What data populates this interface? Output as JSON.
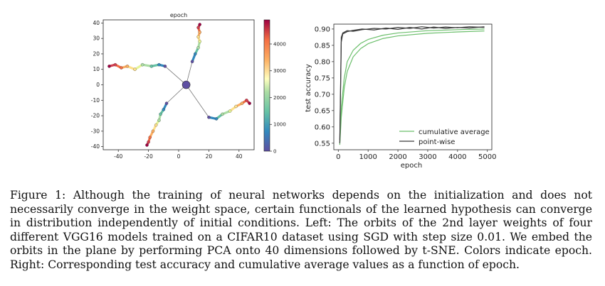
{
  "chart_data": [
    {
      "type": "scatter",
      "title": "epoch",
      "xlabel": "",
      "ylabel": "",
      "xlim": [
        -50,
        50
      ],
      "ylim": [
        -42,
        42
      ],
      "xticks": [
        -40,
        -20,
        0,
        20,
        40
      ],
      "yticks": [
        -40,
        -30,
        -20,
        -10,
        0,
        10,
        20,
        30,
        40
      ],
      "center": [
        5,
        0
      ],
      "colorbar": {
        "range": [
          0,
          4900
        ],
        "ticks": [
          0,
          1000,
          2000,
          3000,
          4000
        ]
      },
      "grid": false,
      "series": [
        {
          "points": [
            [
              -9,
              12
            ],
            [
              -13,
              13
            ],
            [
              -18,
              12
            ],
            [
              -24,
              13
            ],
            [
              -29,
              10
            ],
            [
              -34,
              12
            ],
            [
              -38,
              11
            ],
            [
              -42,
              13
            ],
            [
              -46,
              12
            ]
          ]
        },
        {
          "points": [
            [
              9,
              15
            ],
            [
              11,
              20
            ],
            [
              13,
              24
            ],
            [
              14,
              28
            ],
            [
              13,
              31
            ],
            [
              14,
              34
            ],
            [
              13,
              37
            ],
            [
              14,
              39
            ]
          ]
        },
        {
          "points": [
            [
              -8,
              -12
            ],
            [
              -10,
              -16
            ],
            [
              -12,
              -19
            ],
            [
              -13,
              -23
            ],
            [
              -15,
              -26
            ],
            [
              -17,
              -30
            ],
            [
              -19,
              -34
            ],
            [
              -20,
              -37
            ],
            [
              -21,
              -39
            ]
          ]
        },
        {
          "points": [
            [
              20,
              -21
            ],
            [
              25,
              -22
            ],
            [
              29,
              -19
            ],
            [
              34,
              -17
            ],
            [
              38,
              -14
            ],
            [
              42,
              -12
            ],
            [
              45,
              -10
            ],
            [
              47,
              -12
            ]
          ]
        }
      ]
    },
    {
      "type": "line",
      "title": "",
      "xlabel": "epoch",
      "ylabel": "test accuracy",
      "xlim": [
        -150,
        5150
      ],
      "ylim": [
        0.53,
        0.915
      ],
      "xticks": [
        0,
        1000,
        2000,
        3000,
        4000,
        5000
      ],
      "yticks": [
        0.55,
        0.6,
        0.65,
        0.7,
        0.75,
        0.8,
        0.85,
        0.9
      ],
      "legend": "lower-right",
      "series": [
        {
          "name": "cumulative average",
          "color": "#6cbf6c",
          "x": [
            50,
            100,
            200,
            300,
            500,
            750,
            1000,
            1500,
            2000,
            3000,
            4000,
            4900
          ],
          "y": [
            0.545,
            0.63,
            0.72,
            0.77,
            0.815,
            0.84,
            0.855,
            0.871,
            0.879,
            0.887,
            0.891,
            0.894
          ]
        },
        {
          "name": "",
          "color": "#6cbf6c",
          "x": [
            50,
            100,
            200,
            300,
            500,
            750,
            1000,
            1500,
            2000,
            3000,
            4000,
            4900
          ],
          "y": [
            0.55,
            0.66,
            0.75,
            0.8,
            0.835,
            0.856,
            0.868,
            0.881,
            0.888,
            0.895,
            0.898,
            0.9
          ]
        },
        {
          "name": "point-wise",
          "color": "#3a3a3a",
          "x": [
            50,
            100,
            150,
            300,
            500,
            800,
            1200,
            1600,
            2000,
            2400,
            2800,
            3200,
            3600,
            4000,
            4400,
            4900
          ],
          "y": [
            0.55,
            0.86,
            0.885,
            0.892,
            0.896,
            0.9,
            0.897,
            0.903,
            0.899,
            0.905,
            0.9,
            0.906,
            0.902,
            0.905,
            0.903,
            0.907
          ]
        },
        {
          "name": "",
          "color": "#3a3a3a",
          "x": [
            50,
            100,
            150,
            300,
            500,
            800,
            1200,
            1600,
            2000,
            2400,
            2800,
            3200,
            3600,
            4000,
            4400,
            4900
          ],
          "y": [
            0.56,
            0.875,
            0.888,
            0.895,
            0.893,
            0.898,
            0.902,
            0.9,
            0.905,
            0.902,
            0.907,
            0.903,
            0.906,
            0.904,
            0.907,
            0.905
          ]
        }
      ]
    }
  ],
  "caption": "Figure 1: Although the training of neural networks depends on the initialization and does not necessarily converge in the weight space, certain functionals of the learned hypothesis can converge in distribution independently of initial conditions. Left: The orbits of the 2nd layer weights of four different VGG16 models trained on a CIFAR10 dataset using SGD with step size 0.01. We embed the orbits in the plane by performing PCA onto 40 dimensions followed by t-SNE. Colors indicate epoch. Right: Corresponding test accuracy and cumulative average values as a function of epoch."
}
